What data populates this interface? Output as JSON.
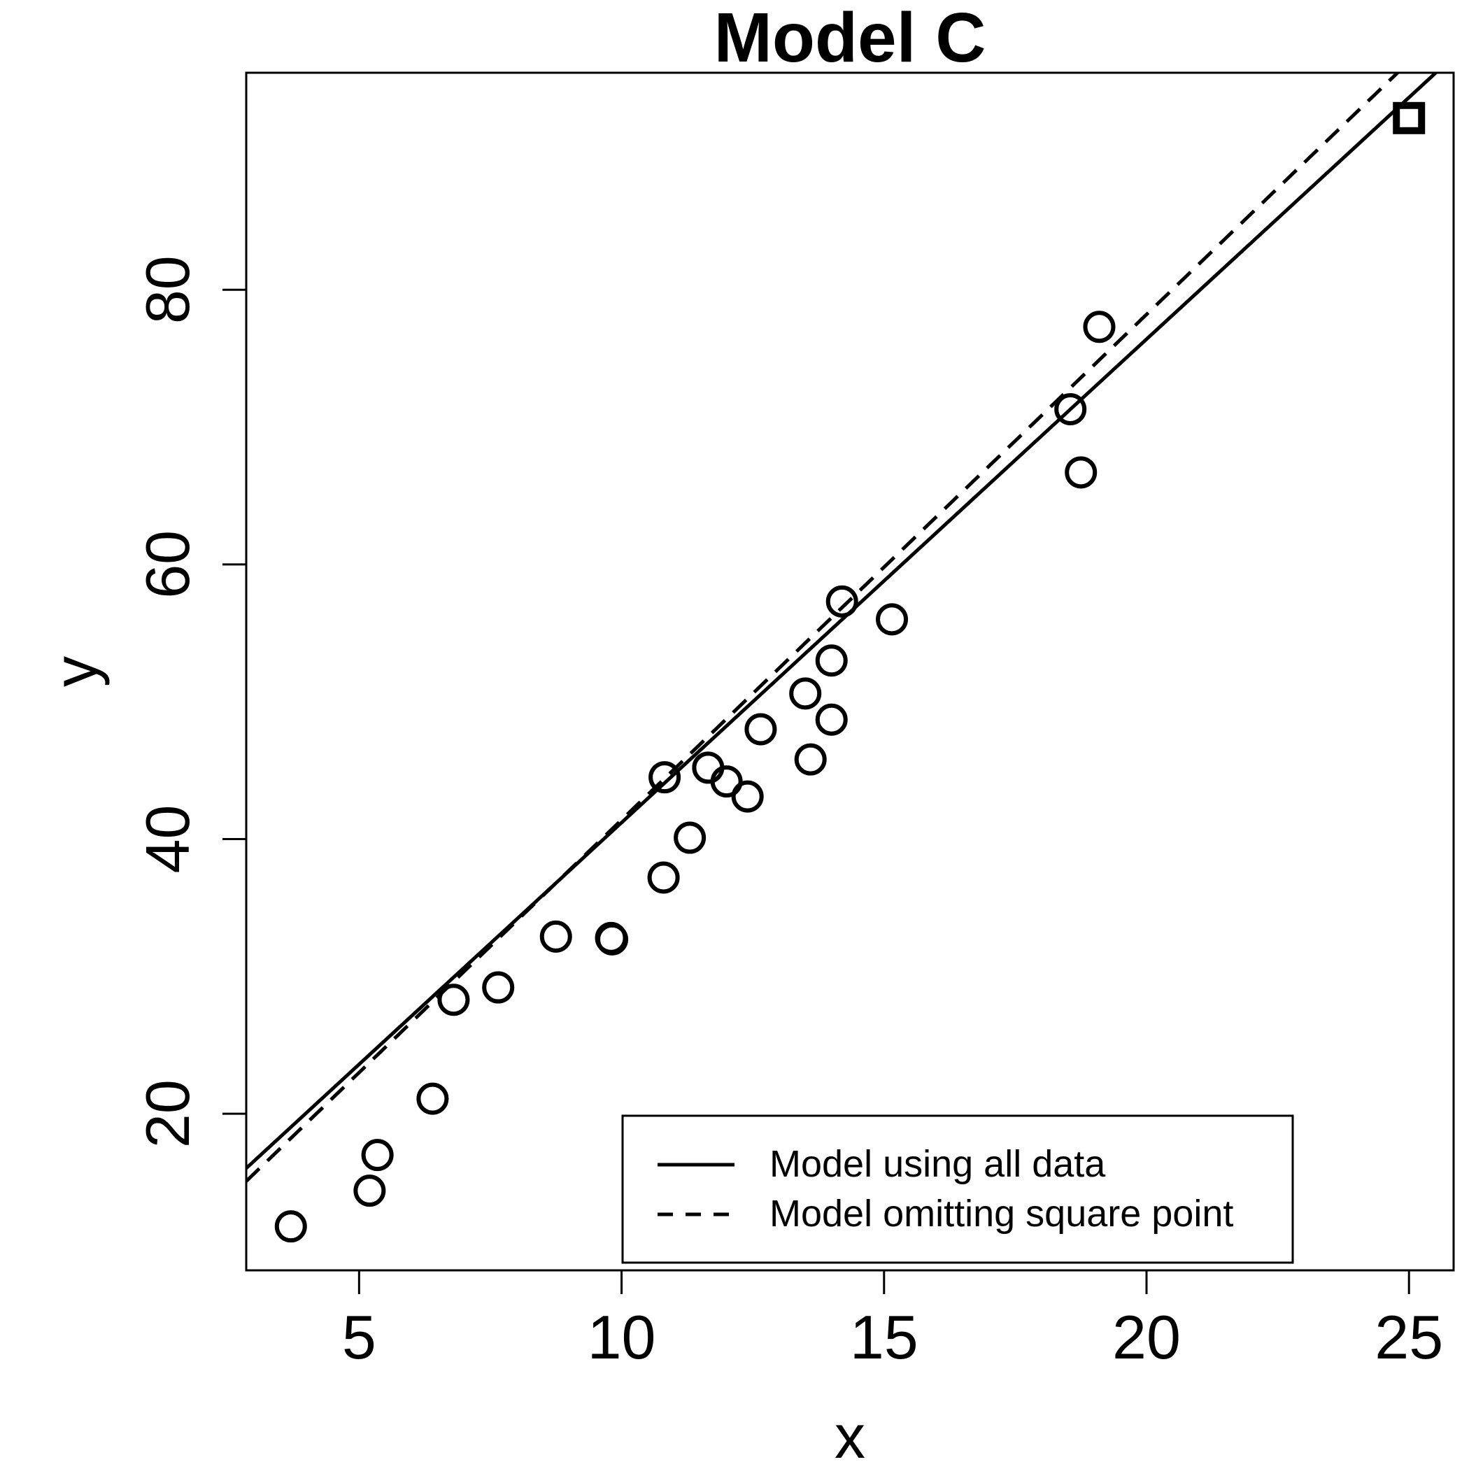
{
  "chart_data": {
    "type": "scatter",
    "title": "Model C",
    "xlabel": "x",
    "ylabel": "y",
    "xlim": [
      2.85,
      25.85
    ],
    "ylim": [
      8.6,
      95.8
    ],
    "xticks": [
      5,
      10,
      15,
      20,
      25
    ],
    "yticks": [
      20,
      40,
      60,
      80
    ],
    "grid": false,
    "legend_position": "bottom-right",
    "points": [
      {
        "x": 3.7,
        "y": 11.8
      },
      {
        "x": 5.2,
        "y": 14.4
      },
      {
        "x": 5.35,
        "y": 17.0
      },
      {
        "x": 6.4,
        "y": 21.1
      },
      {
        "x": 6.8,
        "y": 28.3
      },
      {
        "x": 7.65,
        "y": 29.2
      },
      {
        "x": 8.75,
        "y": 32.9
      },
      {
        "x": 9.8,
        "y": 32.8
      },
      {
        "x": 9.82,
        "y": 32.7
      },
      {
        "x": 10.8,
        "y": 37.2
      },
      {
        "x": 10.82,
        "y": 44.5
      },
      {
        "x": 11.3,
        "y": 40.1
      },
      {
        "x": 11.65,
        "y": 45.2
      },
      {
        "x": 12.0,
        "y": 44.2
      },
      {
        "x": 12.4,
        "y": 43.1
      },
      {
        "x": 12.65,
        "y": 48.0
      },
      {
        "x": 13.5,
        "y": 50.6
      },
      {
        "x": 13.6,
        "y": 45.8
      },
      {
        "x": 14.0,
        "y": 48.7
      },
      {
        "x": 14.0,
        "y": 53.0
      },
      {
        "x": 14.2,
        "y": 57.3
      },
      {
        "x": 15.15,
        "y": 56.0
      },
      {
        "x": 18.55,
        "y": 71.3
      },
      {
        "x": 18.75,
        "y": 66.7
      },
      {
        "x": 19.1,
        "y": 77.3
      }
    ],
    "square_point": {
      "x": 25.0,
      "y": 92.5
    },
    "lines": [
      {
        "name": "Model using all data",
        "style": "solid",
        "intercept": 6.0,
        "slope": 3.52
      },
      {
        "name": "Model omitting square point",
        "style": "dashed",
        "intercept": 4.6,
        "slope": 3.68
      }
    ]
  }
}
